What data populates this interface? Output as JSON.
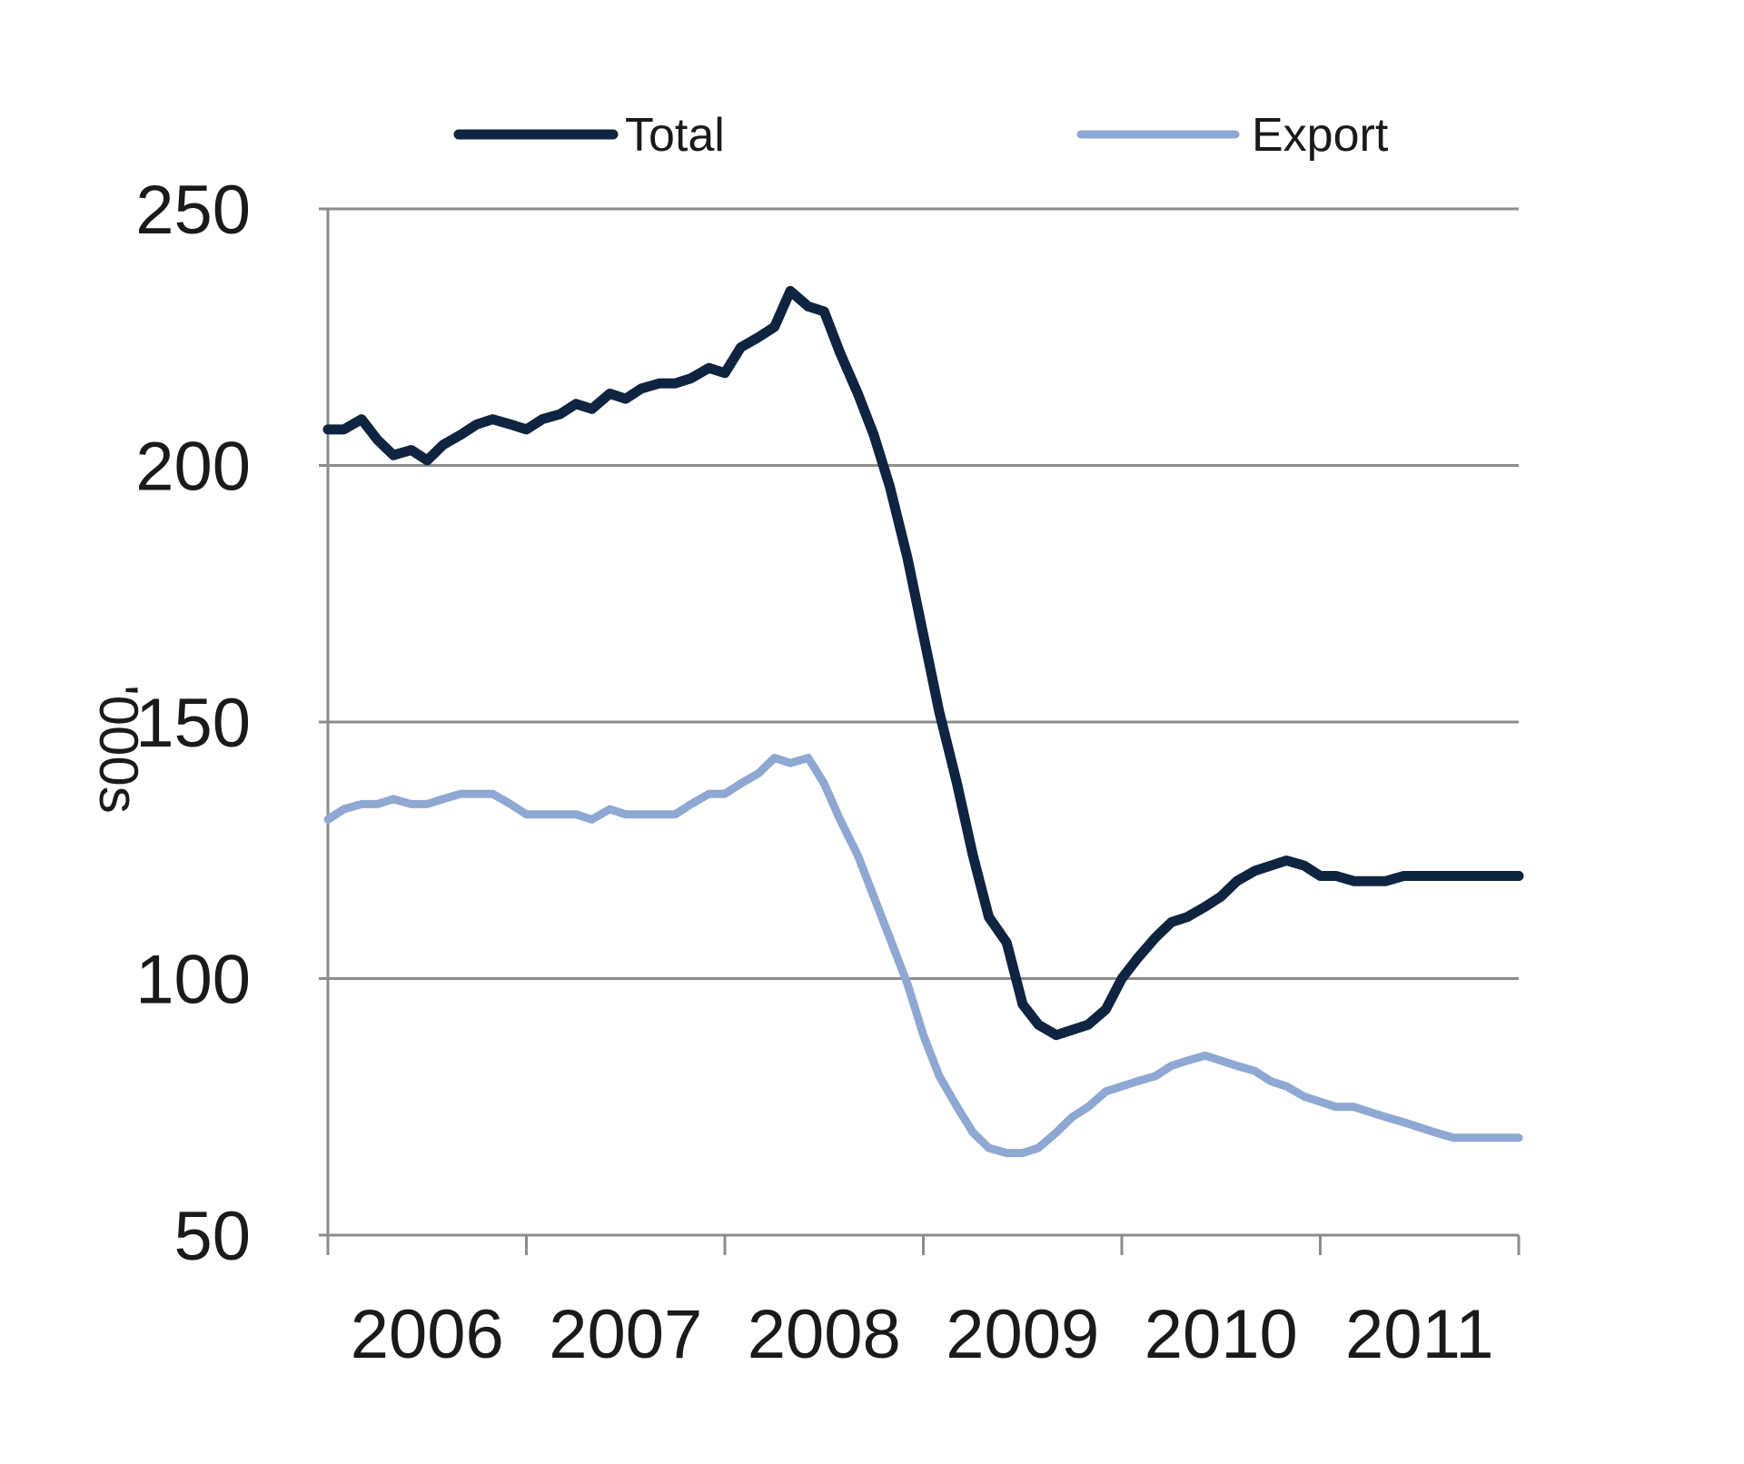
{
  "chart_data": {
    "type": "line",
    "title": "",
    "xlabel": "",
    "ylabel": "'000s",
    "ylim": [
      50,
      250
    ],
    "yticks": [
      50,
      100,
      150,
      200,
      250
    ],
    "xlim": [
      2006.0,
      2012.0
    ],
    "xticks": [
      "2006",
      "2007",
      "2008",
      "2009",
      "2010",
      "2011"
    ],
    "grid": "horizontal",
    "legend_position": "top",
    "series": [
      {
        "name": "Total",
        "color": "#0f2440",
        "x": [
          2006.0,
          2006.08,
          2006.17,
          2006.25,
          2006.33,
          2006.42,
          2006.5,
          2006.58,
          2006.67,
          2006.75,
          2006.83,
          2006.92,
          2007.0,
          2007.08,
          2007.17,
          2007.25,
          2007.33,
          2007.42,
          2007.5,
          2007.58,
          2007.67,
          2007.75,
          2007.83,
          2007.92,
          2008.0,
          2008.08,
          2008.17,
          2008.25,
          2008.33,
          2008.42,
          2008.5,
          2008.58,
          2008.67,
          2008.75,
          2008.83,
          2008.92,
          2009.0,
          2009.08,
          2009.17,
          2009.25,
          2009.33,
          2009.42,
          2009.5,
          2009.58,
          2009.67,
          2009.75,
          2009.83,
          2009.92,
          2010.0,
          2010.08,
          2010.17,
          2010.25,
          2010.33,
          2010.42,
          2010.5,
          2010.58,
          2010.67,
          2010.75,
          2010.83,
          2010.92,
          2011.0,
          2011.08,
          2011.17,
          2011.25,
          2011.33,
          2011.42,
          2011.5,
          2011.58,
          2011.67,
          2011.75,
          2011.83,
          2011.92,
          2012.0
        ],
        "values": [
          207,
          207,
          209,
          205,
          202,
          203,
          201,
          204,
          206,
          208,
          209,
          208,
          207,
          209,
          210,
          212,
          211,
          214,
          213,
          215,
          216,
          216,
          217,
          219,
          218,
          223,
          225,
          227,
          234,
          231,
          230,
          222,
          214,
          206,
          196,
          182,
          167,
          152,
          138,
          124,
          112,
          107,
          95,
          91,
          89,
          90,
          91,
          94,
          100,
          104,
          108,
          111,
          112,
          114,
          116,
          119,
          121,
          122,
          123,
          122,
          120,
          120,
          119,
          119,
          119,
          120,
          120,
          120,
          120,
          120,
          120,
          120,
          120
        ]
      },
      {
        "name": "Export",
        "color": "#8ea8d3",
        "x": [
          2006.0,
          2006.08,
          2006.17,
          2006.25,
          2006.33,
          2006.42,
          2006.5,
          2006.58,
          2006.67,
          2006.75,
          2006.83,
          2006.92,
          2007.0,
          2007.08,
          2007.17,
          2007.25,
          2007.33,
          2007.42,
          2007.5,
          2007.58,
          2007.67,
          2007.75,
          2007.83,
          2007.92,
          2008.0,
          2008.08,
          2008.17,
          2008.25,
          2008.33,
          2008.42,
          2008.5,
          2008.58,
          2008.67,
          2008.75,
          2008.83,
          2008.92,
          2009.0,
          2009.08,
          2009.17,
          2009.25,
          2009.33,
          2009.42,
          2009.5,
          2009.58,
          2009.67,
          2009.75,
          2009.83,
          2009.92,
          2010.0,
          2010.08,
          2010.17,
          2010.25,
          2010.33,
          2010.42,
          2010.5,
          2010.58,
          2010.67,
          2010.75,
          2010.83,
          2010.92,
          2011.0,
          2011.08,
          2011.17,
          2011.25,
          2011.33,
          2011.42,
          2011.5,
          2011.58,
          2011.67,
          2011.75,
          2011.83,
          2011.92,
          2012.0
        ],
        "values": [
          131,
          133,
          134,
          134,
          135,
          134,
          134,
          135,
          136,
          136,
          136,
          134,
          132,
          132,
          132,
          132,
          131,
          133,
          132,
          132,
          132,
          132,
          134,
          136,
          136,
          138,
          140,
          143,
          142,
          143,
          138,
          131,
          124,
          116,
          108,
          99,
          89,
          81,
          75,
          70,
          67,
          66,
          66,
          67,
          70,
          73,
          75,
          78,
          79,
          80,
          81,
          83,
          84,
          85,
          84,
          83,
          82,
          80,
          79,
          77,
          76,
          75,
          75,
          74,
          73,
          72,
          71,
          70,
          69,
          69,
          69,
          69,
          69
        ]
      }
    ]
  }
}
